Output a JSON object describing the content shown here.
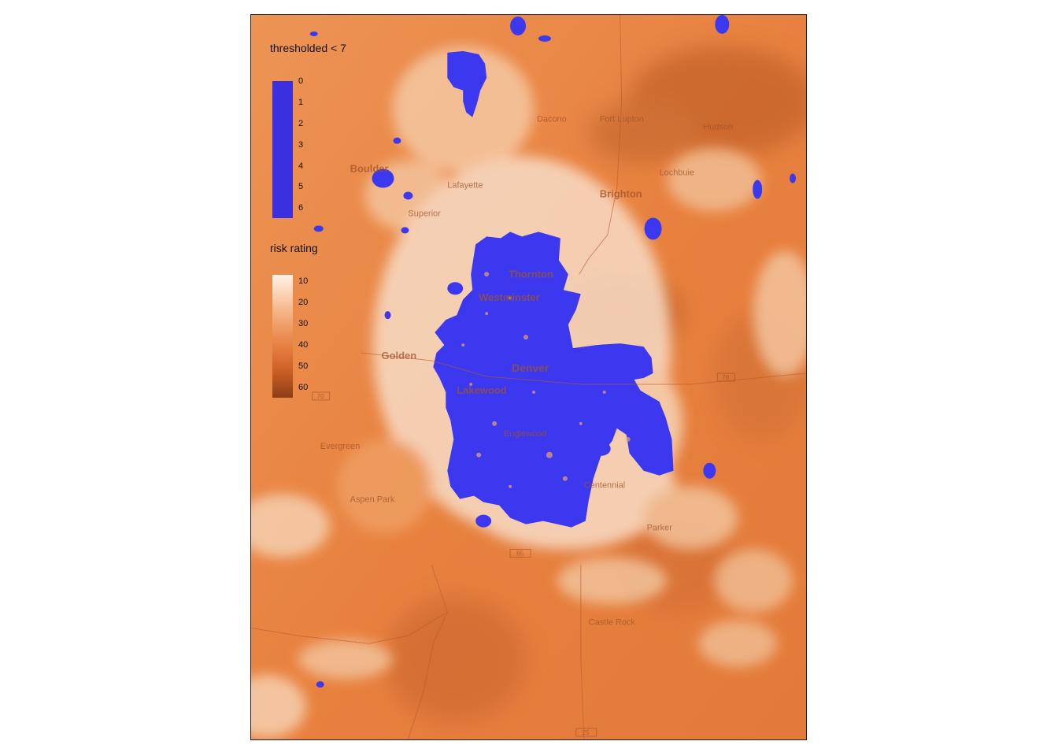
{
  "map": {
    "place_labels": [
      "Boulder",
      "Dacono",
      "Fort Lupton",
      "Hudson",
      "Lafayette",
      "Lochbuie",
      "Brighton",
      "Superior",
      "Thornton",
      "Westminster",
      "Golden",
      "Denver",
      "Lakewood",
      "Englewood",
      "Evergreen",
      "Aspen Park",
      "Centennial",
      "Parker",
      "Castle Rock"
    ],
    "road_shields": [
      "70",
      "76",
      "85",
      "25"
    ]
  },
  "legend_threshold": {
    "title": "thresholded < 7",
    "ticks": [
      "0",
      "1",
      "2",
      "3",
      "4",
      "5",
      "6"
    ],
    "color": "#3b2fe0"
  },
  "legend_risk": {
    "title": "risk rating",
    "ticks": [
      "10",
      "20",
      "30",
      "40",
      "50",
      "60"
    ],
    "colors": [
      "#fff2e8",
      "#f9c9a6",
      "#f0a06a",
      "#e67c3c",
      "#c85d24",
      "#8a3d16"
    ]
  },
  "colors": {
    "threshold_fill": "#3b38ef",
    "base_orange": "#e8803e",
    "light": "#fbe4d2",
    "dark": "#c25a26"
  }
}
